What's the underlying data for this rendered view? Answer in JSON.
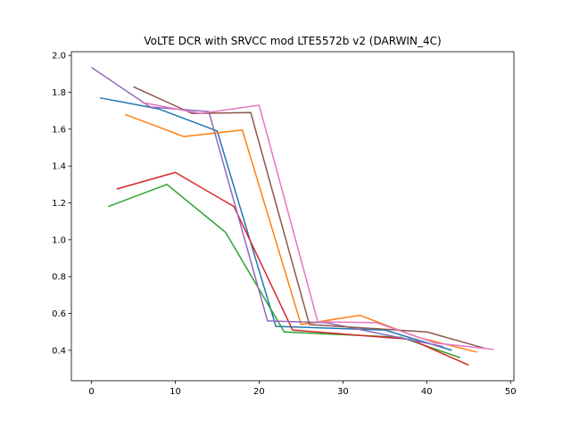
{
  "chart_data": {
    "type": "line",
    "title": "VoLTE DCR with SRVCC mod LTE5572b v2 (DARWIN_4C)",
    "xlabel": "",
    "ylabel": "",
    "xlim": [
      -2.4,
      50.4
    ],
    "ylim": [
      0.235,
      2.02
    ],
    "xticks": [
      0,
      10,
      20,
      30,
      40,
      50
    ],
    "yticks": [
      0.4,
      0.6,
      0.8,
      1.0,
      1.2,
      1.4,
      1.6,
      1.8,
      2.0
    ],
    "ytick_labels": [
      "0.4",
      "0.6",
      "0.8",
      "1.0",
      "1.2",
      "1.4",
      "1.6",
      "1.8",
      "2.0"
    ],
    "grid": false,
    "legend": "none",
    "series": [
      {
        "color": "#1f77b4",
        "points": [
          [
            1,
            1.77
          ],
          [
            8,
            1.71
          ],
          [
            15,
            1.59
          ],
          [
            22,
            0.53
          ],
          [
            35,
            0.51
          ],
          [
            43,
            0.4
          ]
        ]
      },
      {
        "color": "#ff7f0e",
        "points": [
          [
            4,
            1.68
          ],
          [
            11,
            1.56
          ],
          [
            18,
            1.595
          ],
          [
            25,
            0.54
          ],
          [
            32,
            0.59
          ],
          [
            39,
            0.47
          ],
          [
            46,
            0.39
          ]
        ]
      },
      {
        "color": "#2ca02c",
        "points": [
          [
            2,
            1.18
          ],
          [
            9,
            1.3
          ],
          [
            16,
            1.04
          ],
          [
            23,
            0.5
          ],
          [
            37,
            0.47
          ],
          [
            44,
            0.36
          ]
        ]
      },
      {
        "color": "#d62728",
        "points": [
          [
            3,
            1.275
          ],
          [
            10,
            1.365
          ],
          [
            17,
            1.18
          ],
          [
            24,
            0.51
          ],
          [
            38,
            0.46
          ],
          [
            45,
            0.32
          ]
        ]
      },
      {
        "color": "#9467bd",
        "points": [
          [
            0,
            1.935
          ],
          [
            7,
            1.72
          ],
          [
            14,
            1.695
          ],
          [
            21,
            0.56
          ],
          [
            28,
            0.55
          ],
          [
            42,
            0.42
          ]
        ]
      },
      {
        "color": "#8c564b",
        "points": [
          [
            5,
            1.83
          ],
          [
            12,
            1.685
          ],
          [
            19,
            1.69
          ],
          [
            26,
            0.54
          ],
          [
            40,
            0.5
          ],
          [
            47,
            0.41
          ]
        ]
      },
      {
        "color": "#e377c2",
        "points": [
          [
            6,
            1.745
          ],
          [
            13,
            1.685
          ],
          [
            20,
            1.73
          ],
          [
            27,
            0.555
          ],
          [
            34,
            0.55
          ],
          [
            41,
            0.44
          ],
          [
            48,
            0.405
          ]
        ]
      }
    ]
  }
}
